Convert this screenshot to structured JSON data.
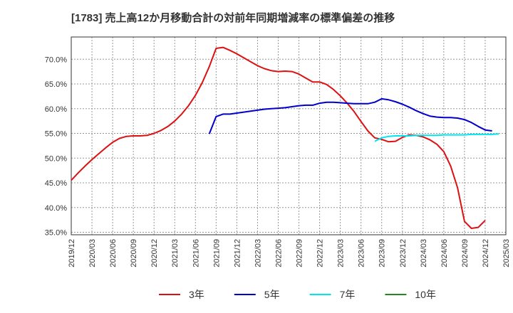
{
  "chart_data": {
    "type": "line",
    "title": "[1783]  売上高12か月移動合計の対前年同期増減率の標準偏差の推移",
    "xlabel": "",
    "ylabel": "",
    "ylim": [
      0.345,
      0.745
    ],
    "yticks": [
      0.35,
      0.4,
      0.45,
      0.5,
      0.55,
      0.6,
      0.65,
      0.7
    ],
    "ytick_labels": [
      "35.0%",
      "40.0%",
      "45.0%",
      "50.0%",
      "55.0%",
      "60.0%",
      "65.0%",
      "70.0%"
    ],
    "xlim": [
      "2019-12",
      "2025-03"
    ],
    "xticks": [
      "2019-12",
      "2020-03",
      "2020-06",
      "2020-09",
      "2020-12",
      "2021-03",
      "2021-06",
      "2021-09",
      "2021-12",
      "2022-03",
      "2022-06",
      "2022-09",
      "2022-12",
      "2023-03",
      "2023-06",
      "2023-09",
      "2023-12",
      "2024-03",
      "2024-06",
      "2024-09",
      "2024-12",
      "2025-03"
    ],
    "xtick_labels": [
      "2019/12",
      "2020/03",
      "2020/06",
      "2020/09",
      "2020/12",
      "2021/03",
      "2021/06",
      "2021/09",
      "2021/12",
      "2022/03",
      "2022/06",
      "2022/09",
      "2022/12",
      "2023/03",
      "2023/06",
      "2023/09",
      "2023/12",
      "2024/03",
      "2024/06",
      "2024/09",
      "2024/12",
      "2025/03"
    ],
    "grid": true,
    "legend_position": "bottom",
    "series": [
      {
        "name": "3年",
        "color": "#dd1111",
        "start": "2019-12",
        "values": [
          0.455,
          0.47,
          0.484,
          0.497,
          0.509,
          0.521,
          0.532,
          0.54,
          0.544,
          0.545,
          0.545,
          0.546,
          0.55,
          0.556,
          0.564,
          0.575,
          0.589,
          0.606,
          0.627,
          0.653,
          0.685,
          0.722,
          0.724,
          0.718,
          0.711,
          0.703,
          0.695,
          0.687,
          0.681,
          0.677,
          0.675,
          0.676,
          0.675,
          0.67,
          0.662,
          0.654,
          0.654,
          0.649,
          0.639,
          0.626,
          0.611,
          0.594,
          0.574,
          0.555,
          0.541,
          0.538,
          0.533,
          0.534,
          0.542,
          0.547,
          0.546,
          0.543,
          0.537,
          0.528,
          0.513,
          0.484,
          0.44,
          0.372,
          0.358,
          0.36,
          0.374
        ]
      },
      {
        "name": "5年",
        "color": "#0000cc",
        "start": "2021-08",
        "values": [
          0.549,
          0.584,
          0.589,
          0.589,
          0.591,
          0.593,
          0.595,
          0.597,
          0.599,
          0.6,
          0.601,
          0.602,
          0.604,
          0.606,
          0.607,
          0.607,
          0.611,
          0.613,
          0.613,
          0.612,
          0.611,
          0.61,
          0.61,
          0.61,
          0.613,
          0.62,
          0.618,
          0.614,
          0.609,
          0.603,
          0.596,
          0.59,
          0.585,
          0.583,
          0.582,
          0.582,
          0.581,
          0.578,
          0.572,
          0.564,
          0.557,
          0.555
        ]
      },
      {
        "name": "7年",
        "color": "#00e5ee",
        "start": "2023-08",
        "values": [
          0.534,
          0.541,
          0.544,
          0.545,
          0.545,
          0.545,
          0.546,
          0.546,
          0.546,
          0.546,
          0.547,
          0.547,
          0.547,
          0.547,
          0.548,
          0.548,
          0.548,
          0.548,
          0.549
        ]
      },
      {
        "name": "10年",
        "color": "#228822",
        "start": "2019-12",
        "values": []
      }
    ]
  }
}
